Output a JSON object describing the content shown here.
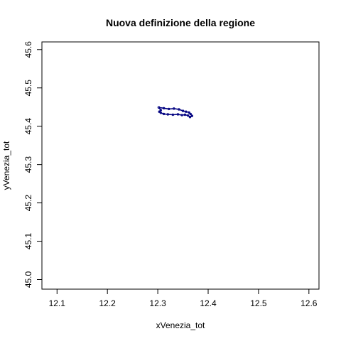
{
  "chart_data": {
    "type": "line",
    "title": "Nuova definizione della regione",
    "xlabel": "xVenezia_tot",
    "ylabel": "yVenezia_tot",
    "xlim": [
      12.07,
      12.62
    ],
    "ylim": [
      44.975,
      45.62
    ],
    "xticks": [
      "12.1",
      "12.2",
      "12.3",
      "12.4",
      "12.5",
      "12.6"
    ],
    "yticks": [
      "45.0",
      "45.1",
      "45.2",
      "45.3",
      "45.4",
      "45.5",
      "45.6"
    ],
    "grid": false,
    "line_color": "#000080",
    "series": [
      {
        "x": [
          12.302,
          12.312,
          12.322,
          12.332,
          12.342,
          12.35,
          12.356,
          12.362,
          12.365,
          12.368,
          12.364,
          12.36,
          12.354,
          12.348,
          12.34,
          12.33,
          12.32,
          12.312,
          12.306,
          12.303,
          12.306,
          12.302
        ],
        "y": [
          45.449,
          45.447,
          45.445,
          45.446,
          45.444,
          45.44,
          45.438,
          45.436,
          45.432,
          45.427,
          45.424,
          45.428,
          45.43,
          45.429,
          45.431,
          45.43,
          45.431,
          45.432,
          45.435,
          45.438,
          45.442,
          45.449
        ]
      }
    ]
  }
}
